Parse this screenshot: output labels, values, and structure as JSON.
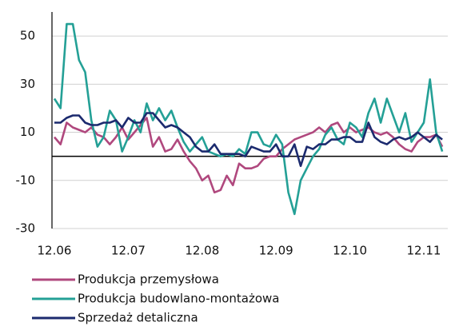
{
  "chart_data": {
    "type": "line",
    "categories": [
      "12.06",
      null,
      null,
      null,
      null,
      null,
      null,
      null,
      null,
      null,
      null,
      null,
      "12.07",
      null,
      null,
      null,
      null,
      null,
      null,
      null,
      null,
      null,
      null,
      null,
      "12.08",
      null,
      null,
      null,
      null,
      null,
      null,
      null,
      null,
      null,
      null,
      null,
      "12.09",
      null,
      null,
      null,
      null,
      null,
      null,
      null,
      null,
      null,
      null,
      null,
      "12.10",
      null,
      null,
      null,
      null,
      null,
      null,
      null,
      null,
      null,
      null,
      null,
      "12.11",
      null,
      null,
      null
    ],
    "series": [
      {
        "name": "Produkcja przemysłowa",
        "color": "#b0487e",
        "values": [
          8,
          5,
          14,
          12,
          11,
          10,
          12,
          9,
          8,
          5,
          8,
          12,
          7,
          10,
          13,
          16,
          4,
          8,
          2,
          3,
          7,
          2,
          -2,
          -5,
          -10,
          -8,
          -15,
          -14,
          -8,
          -12,
          -3,
          -5,
          -5,
          -4,
          -1,
          0,
          0,
          3,
          5,
          7,
          8,
          9,
          10,
          12,
          10,
          13,
          14,
          10,
          12,
          10,
          11,
          12,
          10,
          9,
          10,
          8,
          5,
          3,
          2,
          6,
          8,
          8,
          9,
          4
        ]
      },
      {
        "name": "Produkcja budowlano-montażowa",
        "color": "#24a096",
        "values": [
          24,
          20,
          55,
          55,
          40,
          35,
          15,
          4,
          8,
          19,
          15,
          2,
          8,
          15,
          10,
          22,
          15,
          20,
          15,
          19,
          12,
          6,
          2,
          5,
          8,
          2,
          1,
          0,
          1,
          0,
          3,
          1,
          10,
          10,
          5,
          4,
          9,
          5,
          -15,
          -24,
          -10,
          -5,
          0,
          3,
          9,
          12,
          7,
          5,
          14,
          12,
          8,
          18,
          24,
          14,
          24,
          17,
          10,
          18,
          6,
          10,
          14,
          32,
          10,
          2
        ]
      },
      {
        "name": "Sprzedaż detaliczna",
        "color": "#1b2a6e",
        "values": [
          14,
          14,
          16,
          17,
          17,
          14,
          13,
          13,
          14,
          14,
          15,
          12,
          16,
          14,
          14,
          18,
          18,
          15,
          12,
          13,
          12,
          10,
          8,
          4,
          2,
          2,
          5,
          1,
          1,
          1,
          1,
          0,
          4,
          3,
          2,
          2,
          5,
          0,
          0,
          5,
          -4,
          4,
          3,
          5,
          5,
          7,
          7,
          8,
          8,
          6,
          6,
          14,
          8,
          6,
          5,
          7,
          8,
          7,
          8,
          10,
          8,
          6,
          9,
          7
        ]
      }
    ],
    "ylim": [
      -30,
      60
    ],
    "yticks": [
      -30,
      -10,
      10,
      30,
      50
    ],
    "grid": true,
    "legend": "bottom"
  }
}
